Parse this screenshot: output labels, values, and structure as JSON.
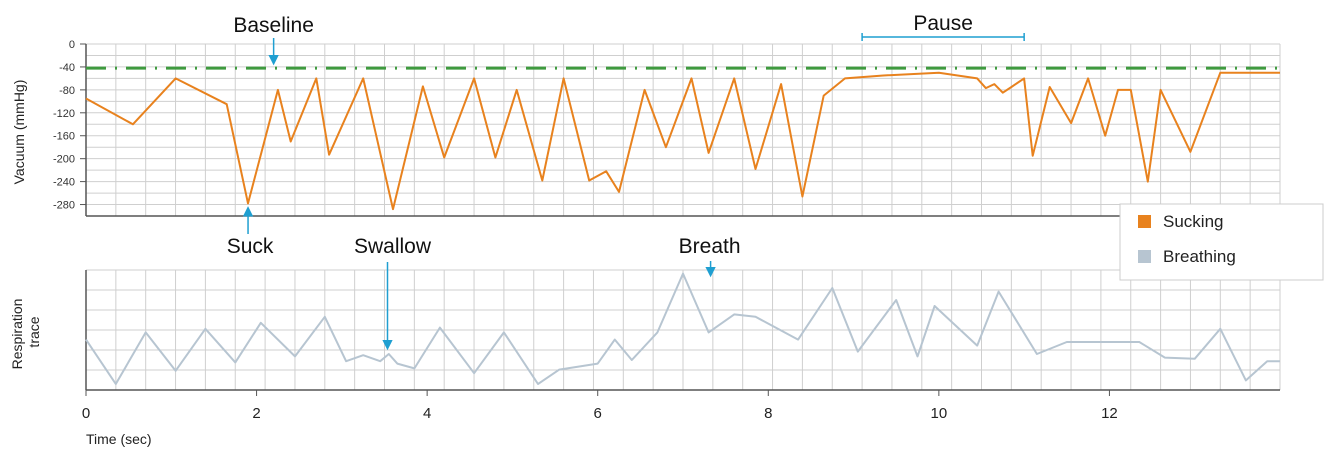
{
  "chart_data": [
    {
      "type": "line",
      "ylabel": "Vacuum (mmHg)",
      "ylim": [
        -300,
        0
      ],
      "yticks": [
        0,
        -40,
        -80,
        -120,
        -160,
        -200,
        -240,
        -280
      ],
      "xlim": [
        0,
        14
      ],
      "series": [
        {
          "name": "Sucking",
          "color": "#e8821e",
          "x": [
            0,
            0.55,
            1.05,
            1.65,
            1.9,
            2.25,
            2.4,
            2.7,
            2.85,
            3.25,
            3.6,
            3.95,
            4.2,
            4.55,
            4.8,
            5.05,
            5.35,
            5.6,
            5.9,
            6.1,
            6.25,
            6.55,
            6.8,
            7.1,
            7.3,
            7.6,
            7.85,
            8.15,
            8.4,
            8.65,
            8.9,
            9.35,
            10.0,
            10.45,
            10.55,
            10.65,
            10.75,
            10.85,
            11.0,
            11.1,
            11.3,
            11.55,
            11.75,
            11.95,
            12.1,
            12.25,
            12.45,
            12.6,
            12.95,
            13.3,
            13.55,
            13.75,
            13.95,
            14.0
          ],
          "y": [
            -95,
            -140,
            -60,
            -105,
            -278,
            -80,
            -170,
            -60,
            -193,
            -60,
            -288,
            -74,
            -198,
            -60,
            -198,
            -80,
            -238,
            -60,
            -238,
            -222,
            -258,
            -80,
            -180,
            -60,
            -190,
            -60,
            -218,
            -70,
            -266,
            -90,
            -60,
            -55,
            -50,
            -60,
            -77,
            -70,
            -85,
            -75,
            -60,
            -195,
            -75,
            -138,
            -60,
            -160,
            -80,
            -80,
            -240,
            -80,
            -188,
            -50,
            -50,
            -50,
            -50,
            -50
          ]
        }
      ],
      "reference_lines": [
        {
          "name": "Baseline",
          "y": -42,
          "color": "#3f9a3f",
          "style": "dash-dot"
        }
      ],
      "annotations": [
        {
          "text": "Baseline",
          "x": 2.2,
          "y": -42
        },
        {
          "text": "Pause",
          "x_start": 9.1,
          "x_end": 11.0
        },
        {
          "text": "Suck",
          "x": 1.9,
          "y": -278
        }
      ]
    },
    {
      "type": "line",
      "ylabel": "Respiration trace",
      "xlabel": "Time (sec)",
      "xlim": [
        0,
        14
      ],
      "xticks": [
        0,
        2,
        4,
        6,
        8,
        10,
        12
      ],
      "ylim": [
        0,
        100
      ],
      "series": [
        {
          "name": "Breathing",
          "color": "#b7c5d1",
          "x": [
            0,
            0.35,
            0.7,
            1.05,
            1.4,
            1.75,
            2.05,
            2.45,
            2.8,
            3.05,
            3.25,
            3.45,
            3.55,
            3.65,
            3.85,
            4.15,
            4.55,
            4.9,
            5.3,
            5.55,
            6.0,
            6.2,
            6.4,
            6.7,
            7.0,
            7.3,
            7.6,
            7.85,
            8.35,
            8.75,
            9.05,
            9.5,
            9.75,
            9.95,
            10.45,
            10.7,
            11.15,
            11.5,
            11.75,
            12.1,
            12.35,
            12.65,
            13.0,
            13.3,
            13.6,
            13.85,
            14.0
          ],
          "y": [
            42,
            5,
            48,
            16,
            51,
            23,
            56,
            28,
            61,
            24,
            29,
            24,
            30,
            22,
            18,
            52,
            14,
            48,
            5,
            17,
            22,
            42,
            25,
            48,
            97,
            48,
            63,
            61,
            42,
            85,
            32,
            75,
            28,
            70,
            37,
            82,
            30,
            40,
            40,
            40,
            40,
            27,
            26,
            51,
            8,
            24,
            24
          ]
        }
      ],
      "annotations": [
        {
          "text": "Swallow",
          "x": 3.5
        },
        {
          "text": "Breath",
          "x": 7.3
        }
      ]
    }
  ],
  "legend": {
    "placement": "right",
    "items": [
      {
        "label": "Sucking",
        "color": "#e8821e"
      },
      {
        "label": "Breathing",
        "color": "#b7c5d1"
      }
    ]
  },
  "colors": {
    "annotation_arrow": "#1f9fd1",
    "grid": "#cfcfcf",
    "axis": "#555555"
  }
}
